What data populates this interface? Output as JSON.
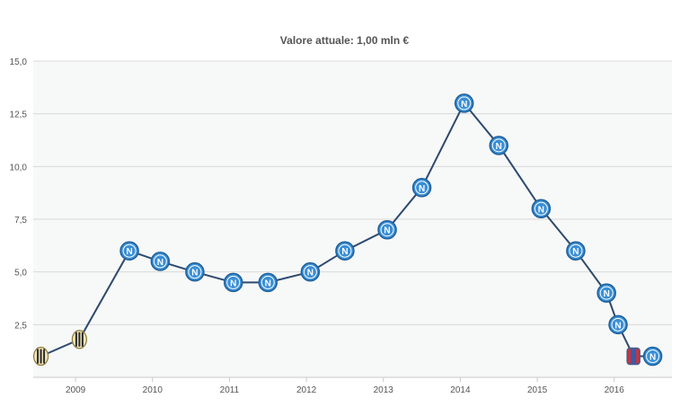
{
  "chart_data": {
    "type": "line",
    "title": "Valore attuale: 1,00 mln €",
    "xlabel": "",
    "ylabel": "",
    "ylim": [
      0,
      15
    ],
    "y_ticks": [
      "2,5",
      "5,0",
      "7,5",
      "10,0",
      "12,5",
      "15,0"
    ],
    "y_tick_values": [
      2.5,
      5,
      7.5,
      10,
      12.5,
      15
    ],
    "x_ticks": [
      "2009",
      "2010",
      "2011",
      "2012",
      "2013",
      "2014",
      "2015",
      "2016"
    ],
    "grid": true,
    "colors": {
      "line": "#2e4a6e",
      "plot_bg": "#f7f8f8",
      "grid": "#d9d9d9",
      "marker_club_a": "#3a8fd6",
      "marker_club_b": "#2b2b2b"
    },
    "series": [
      {
        "x": [
          2008.55,
          2009.05,
          2009.7,
          2010.1,
          2010.55,
          2011.05,
          2011.5,
          2012.05,
          2012.5,
          2013.05,
          2013.5,
          2014.05,
          2014.5,
          2015.05,
          2015.5,
          2015.9,
          2016.05,
          2016.25,
          2016.5
        ],
        "values": [
          1.0,
          1.8,
          6.0,
          5.5,
          5.0,
          4.5,
          4.5,
          5.0,
          6.0,
          7.0,
          9.0,
          13.0,
          11.0,
          8.0,
          6.0,
          4.0,
          2.5,
          1.0,
          1.0
        ],
        "markers": [
          "club-b",
          "club-b",
          "club-a",
          "club-a",
          "club-a",
          "club-a",
          "club-a",
          "club-a",
          "club-a",
          "club-a",
          "club-a",
          "club-a",
          "club-a",
          "club-a",
          "club-a",
          "club-a",
          "club-a",
          "club-c",
          "club-a"
        ]
      }
    ]
  }
}
